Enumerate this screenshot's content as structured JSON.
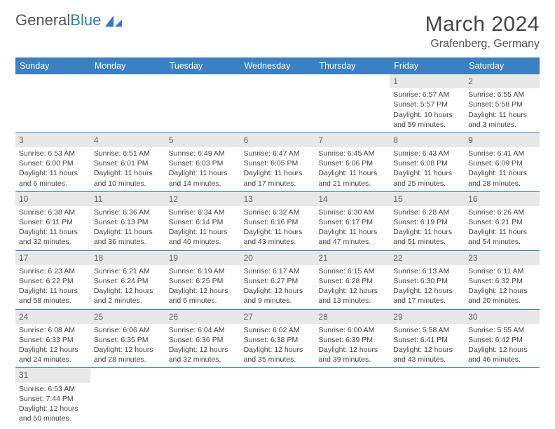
{
  "logo": {
    "brand_a": "General",
    "brand_b": "Blue",
    "accent_color": "#2f7bc4"
  },
  "header": {
    "title": "March 2024",
    "location": "Grafenberg, Germany"
  },
  "colors": {
    "daybar_bg": "#3a80c3",
    "daybar_text": "#ffffff",
    "num_bg": "#e8e8e8",
    "border": "#c7c7c7",
    "week_divider": "#3a80c3",
    "text": "#444444"
  },
  "daynames": [
    "Sunday",
    "Monday",
    "Tuesday",
    "Wednesday",
    "Thursday",
    "Friday",
    "Saturday"
  ],
  "weeks": [
    [
      null,
      null,
      null,
      null,
      null,
      {
        "n": "1",
        "sr": "Sunrise: 6:57 AM",
        "ss": "Sunset: 5:57 PM",
        "dl": "Daylight: 10 hours and 59 minutes."
      },
      {
        "n": "2",
        "sr": "Sunrise: 6:55 AM",
        "ss": "Sunset: 5:58 PM",
        "dl": "Daylight: 11 hours and 3 minutes."
      }
    ],
    [
      {
        "n": "3",
        "sr": "Sunrise: 6:53 AM",
        "ss": "Sunset: 6:00 PM",
        "dl": "Daylight: 11 hours and 6 minutes."
      },
      {
        "n": "4",
        "sr": "Sunrise: 6:51 AM",
        "ss": "Sunset: 6:01 PM",
        "dl": "Daylight: 11 hours and 10 minutes."
      },
      {
        "n": "5",
        "sr": "Sunrise: 6:49 AM",
        "ss": "Sunset: 6:03 PM",
        "dl": "Daylight: 11 hours and 14 minutes."
      },
      {
        "n": "6",
        "sr": "Sunrise: 6:47 AM",
        "ss": "Sunset: 6:05 PM",
        "dl": "Daylight: 11 hours and 17 minutes."
      },
      {
        "n": "7",
        "sr": "Sunrise: 6:45 AM",
        "ss": "Sunset: 6:06 PM",
        "dl": "Daylight: 11 hours and 21 minutes."
      },
      {
        "n": "8",
        "sr": "Sunrise: 6:43 AM",
        "ss": "Sunset: 6:08 PM",
        "dl": "Daylight: 11 hours and 25 minutes."
      },
      {
        "n": "9",
        "sr": "Sunrise: 6:41 AM",
        "ss": "Sunset: 6:09 PM",
        "dl": "Daylight: 11 hours and 28 minutes."
      }
    ],
    [
      {
        "n": "10",
        "sr": "Sunrise: 6:38 AM",
        "ss": "Sunset: 6:11 PM",
        "dl": "Daylight: 11 hours and 32 minutes."
      },
      {
        "n": "11",
        "sr": "Sunrise: 6:36 AM",
        "ss": "Sunset: 6:13 PM",
        "dl": "Daylight: 11 hours and 36 minutes."
      },
      {
        "n": "12",
        "sr": "Sunrise: 6:34 AM",
        "ss": "Sunset: 6:14 PM",
        "dl": "Daylight: 11 hours and 40 minutes."
      },
      {
        "n": "13",
        "sr": "Sunrise: 6:32 AM",
        "ss": "Sunset: 6:16 PM",
        "dl": "Daylight: 11 hours and 43 minutes."
      },
      {
        "n": "14",
        "sr": "Sunrise: 6:30 AM",
        "ss": "Sunset: 6:17 PM",
        "dl": "Daylight: 11 hours and 47 minutes."
      },
      {
        "n": "15",
        "sr": "Sunrise: 6:28 AM",
        "ss": "Sunset: 6:19 PM",
        "dl": "Daylight: 11 hours and 51 minutes."
      },
      {
        "n": "16",
        "sr": "Sunrise: 6:26 AM",
        "ss": "Sunset: 6:21 PM",
        "dl": "Daylight: 11 hours and 54 minutes."
      }
    ],
    [
      {
        "n": "17",
        "sr": "Sunrise: 6:23 AM",
        "ss": "Sunset: 6:22 PM",
        "dl": "Daylight: 11 hours and 58 minutes."
      },
      {
        "n": "18",
        "sr": "Sunrise: 6:21 AM",
        "ss": "Sunset: 6:24 PM",
        "dl": "Daylight: 12 hours and 2 minutes."
      },
      {
        "n": "19",
        "sr": "Sunrise: 6:19 AM",
        "ss": "Sunset: 6:25 PM",
        "dl": "Daylight: 12 hours and 6 minutes."
      },
      {
        "n": "20",
        "sr": "Sunrise: 6:17 AM",
        "ss": "Sunset: 6:27 PM",
        "dl": "Daylight: 12 hours and 9 minutes."
      },
      {
        "n": "21",
        "sr": "Sunrise: 6:15 AM",
        "ss": "Sunset: 6:28 PM",
        "dl": "Daylight: 12 hours and 13 minutes."
      },
      {
        "n": "22",
        "sr": "Sunrise: 6:13 AM",
        "ss": "Sunset: 6:30 PM",
        "dl": "Daylight: 12 hours and 17 minutes."
      },
      {
        "n": "23",
        "sr": "Sunrise: 6:11 AM",
        "ss": "Sunset: 6:32 PM",
        "dl": "Daylight: 12 hours and 20 minutes."
      }
    ],
    [
      {
        "n": "24",
        "sr": "Sunrise: 6:08 AM",
        "ss": "Sunset: 6:33 PM",
        "dl": "Daylight: 12 hours and 24 minutes."
      },
      {
        "n": "25",
        "sr": "Sunrise: 6:06 AM",
        "ss": "Sunset: 6:35 PM",
        "dl": "Daylight: 12 hours and 28 minutes."
      },
      {
        "n": "26",
        "sr": "Sunrise: 6:04 AM",
        "ss": "Sunset: 6:36 PM",
        "dl": "Daylight: 12 hours and 32 minutes."
      },
      {
        "n": "27",
        "sr": "Sunrise: 6:02 AM",
        "ss": "Sunset: 6:38 PM",
        "dl": "Daylight: 12 hours and 35 minutes."
      },
      {
        "n": "28",
        "sr": "Sunrise: 6:00 AM",
        "ss": "Sunset: 6:39 PM",
        "dl": "Daylight: 12 hours and 39 minutes."
      },
      {
        "n": "29",
        "sr": "Sunrise: 5:58 AM",
        "ss": "Sunset: 6:41 PM",
        "dl": "Daylight: 12 hours and 43 minutes."
      },
      {
        "n": "30",
        "sr": "Sunrise: 5:55 AM",
        "ss": "Sunset: 6:42 PM",
        "dl": "Daylight: 12 hours and 46 minutes."
      }
    ],
    [
      {
        "n": "31",
        "sr": "Sunrise: 6:53 AM",
        "ss": "Sunset: 7:44 PM",
        "dl": "Daylight: 12 hours and 50 minutes."
      },
      null,
      null,
      null,
      null,
      null,
      null
    ]
  ]
}
